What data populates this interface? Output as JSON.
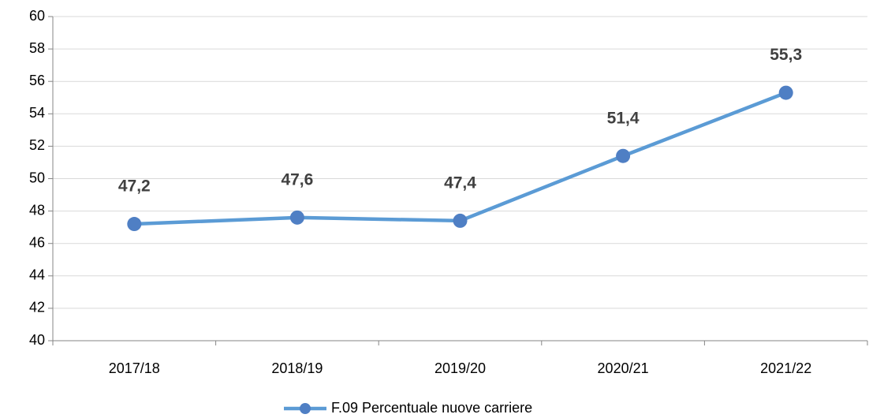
{
  "chart_data": {
    "type": "line",
    "categories": [
      "2017/18",
      "2018/19",
      "2019/20",
      "2020/21",
      "2021/22"
    ],
    "series": [
      {
        "name": "F.09 Percentuale nuove carriere",
        "color": "#5b9bd5",
        "marker_color": "#4f7fc4",
        "values": [
          47.2,
          47.6,
          47.4,
          51.4,
          55.3
        ],
        "value_labels": [
          "47,2",
          "47,6",
          "47,4",
          "51,4",
          "55,3"
        ]
      }
    ],
    "ylim": [
      40,
      60
    ],
    "yticks": [
      40,
      42,
      44,
      46,
      48,
      50,
      52,
      54,
      56,
      58,
      60
    ],
    "grid": true,
    "legend": "bottom"
  }
}
